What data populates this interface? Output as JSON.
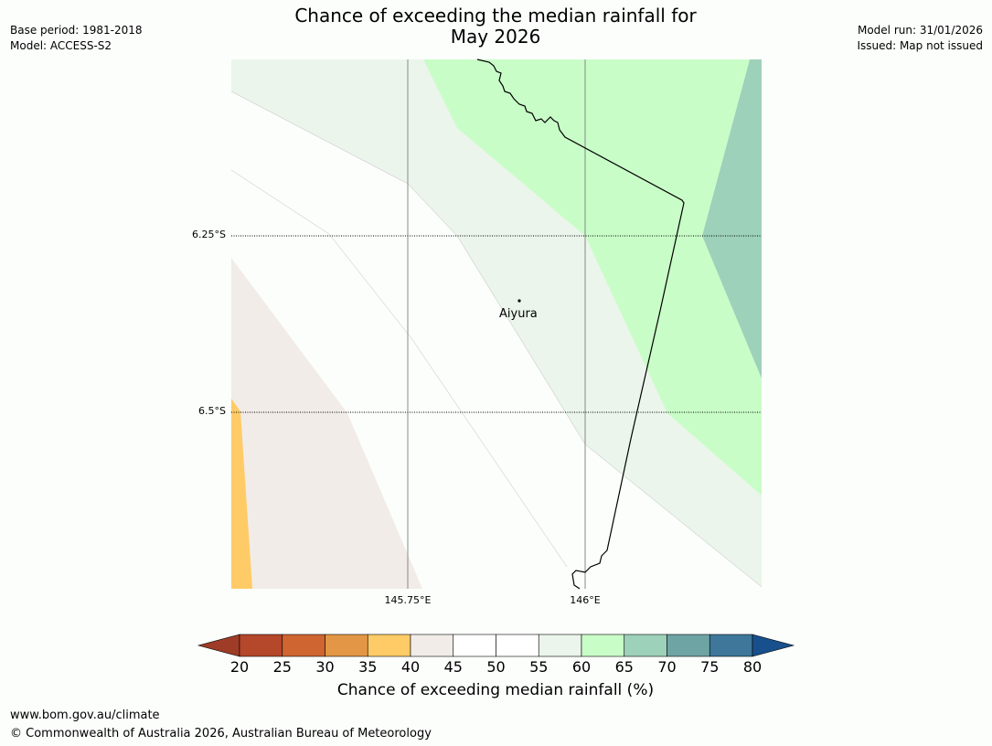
{
  "title_line1": "Chance of exceeding the median rainfall for",
  "title_line2": "May 2026",
  "meta_left": {
    "base_period": "Base period: 1981-2018",
    "model": "Model: ACCESS-S2"
  },
  "meta_right": {
    "model_run": "Model run: 31/01/2026",
    "issued": "Issued: Map not issued"
  },
  "map": {
    "lat_labels": [
      "6.25°S",
      "6.5°S"
    ],
    "lon_labels": [
      "145.75°E",
      "146°E"
    ],
    "place": "Aiyura",
    "colors": {
      "c35_40": "#fecb66",
      "c40_45": "#f1ece7",
      "c45_55": "#fcfefc",
      "c55_60": "#ebf5eb",
      "c60_65": "#c9fdc8",
      "c65_70": "#9ed1b9"
    }
  },
  "colorbar": {
    "ticks": [
      "20",
      "25",
      "30",
      "35",
      "40",
      "45",
      "50",
      "55",
      "60",
      "65",
      "70",
      "75",
      "80"
    ],
    "colors": [
      "#9e3c27",
      "#b5472a",
      "#cf6530",
      "#e39645",
      "#fecb66",
      "#f1ece7",
      "#ffffff",
      "#ffffff",
      "#ebf5eb",
      "#c9fdc8",
      "#9ed1b9",
      "#6fa4a5",
      "#3e7799",
      "#17508c"
    ],
    "label": "Chance of exceeding median rainfall (%)"
  },
  "footer": {
    "url": "www.bom.gov.au/climate",
    "copyright": "© Commonwealth of Australia 2026, Australian Bureau of Meteorology"
  }
}
